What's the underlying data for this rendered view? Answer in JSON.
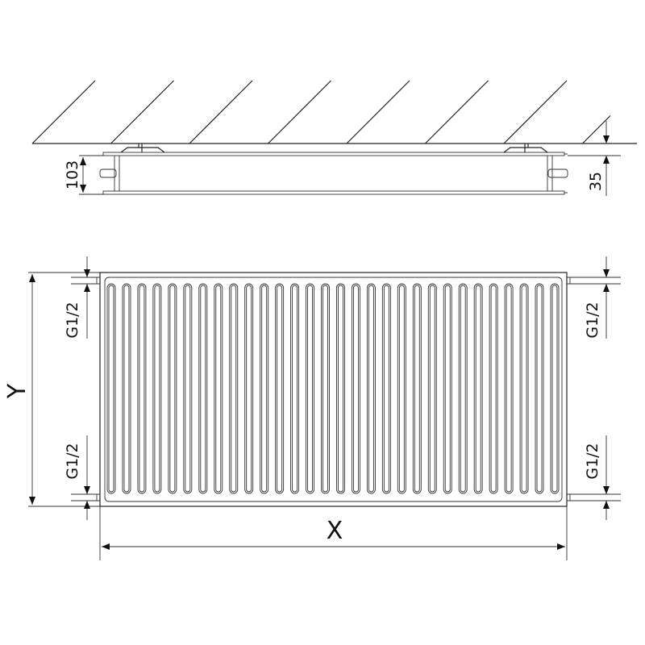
{
  "top_view": {
    "height_label": "103",
    "wall_gap_label": "35"
  },
  "front_view": {
    "height_label": "Y",
    "width_label": "X",
    "connection_labels": [
      "G1/2",
      "G1/2",
      "G1/2",
      "G1/2"
    ],
    "fin_count": 30
  },
  "colors": {
    "line": "#222222",
    "background": "#ffffff"
  }
}
